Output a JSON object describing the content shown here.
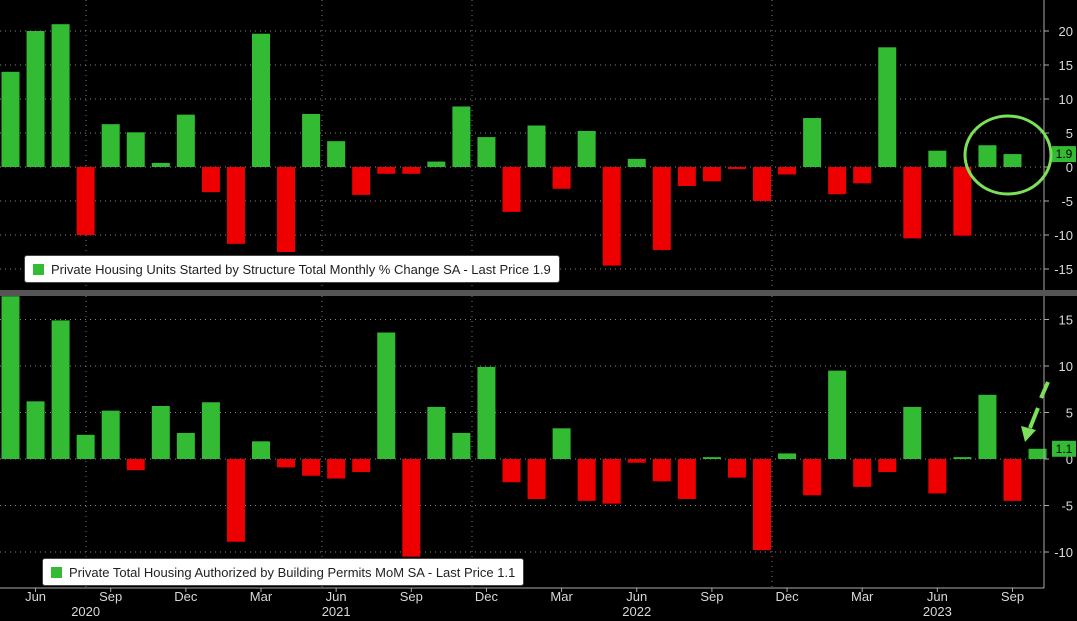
{
  "colors": {
    "positive": "#33bb33",
    "negative": "#ee0000",
    "background": "#000000",
    "annotation": "#7be05a"
  },
  "x_labels": [
    {
      "label": "Jun",
      "index": 1
    },
    {
      "label": "Sep",
      "index": 4
    },
    {
      "label": "Dec",
      "index": 7
    },
    {
      "label": "Mar",
      "index": 10
    },
    {
      "label": "Jun",
      "index": 13
    },
    {
      "label": "Sep",
      "index": 16
    },
    {
      "label": "Dec",
      "index": 19
    },
    {
      "label": "Mar",
      "index": 22
    },
    {
      "label": "Jun",
      "index": 25
    },
    {
      "label": "Sep",
      "index": 28
    },
    {
      "label": "Dec",
      "index": 31
    },
    {
      "label": "Mar",
      "index": 34
    },
    {
      "label": "Jun",
      "index": 37
    },
    {
      "label": "Sep",
      "index": 40
    }
  ],
  "year_labels": [
    {
      "label": "2020",
      "index": 3
    },
    {
      "label": "2021",
      "index": 13
    },
    {
      "label": "2022",
      "index": 25
    },
    {
      "label": "2023",
      "index": 37
    }
  ],
  "chart_data": [
    {
      "type": "bar",
      "legend": "Private Housing Units Started by Structure Total Monthly % Change SA - Last Price 1.9",
      "last_price": "1.9",
      "yticks": [
        20,
        15,
        10,
        5,
        0,
        -5,
        -10,
        -15
      ],
      "ylim": [
        -17,
        24
      ],
      "values": [
        14,
        20,
        21,
        -10,
        6.3,
        5.1,
        0.6,
        7.7,
        -3.7,
        -11.3,
        19.6,
        -12.5,
        7.8,
        3.8,
        -4.1,
        -1,
        -1,
        0.8,
        8.9,
        4.4,
        -6.6,
        6.1,
        -3.2,
        5.3,
        -14.5,
        1.2,
        -12.2,
        -2.8,
        -2.1,
        -0.3,
        -5,
        -1.1,
        7.2,
        -4,
        -2.4,
        17.6,
        -10.5,
        2.4,
        -10.1,
        3.2,
        1.9
      ]
    },
    {
      "type": "bar",
      "legend": "Private Total Housing Authorized by Building Permits MoM SA - Last Price 1.1",
      "last_price": "1.1",
      "yticks": [
        15,
        10,
        5,
        0,
        -5,
        -10
      ],
      "ylim": [
        -13,
        18
      ],
      "values": [
        17.5,
        6.2,
        14.9,
        2.6,
        5.2,
        -1.2,
        5.7,
        2.8,
        6.1,
        -8.9,
        1.9,
        -0.9,
        -1.8,
        -2.1,
        -1.4,
        13.6,
        -10.5,
        5.6,
        2.8,
        9.9,
        -2.5,
        -4.3,
        3.3,
        -4.5,
        -4.8,
        -0.4,
        -2.4,
        -4.3,
        0.2,
        -2,
        -9.8,
        0.6,
        -3.9,
        9.5,
        -3,
        -1.4,
        5.6,
        -3.7,
        0.2,
        6.9,
        -4.5,
        1.1
      ]
    }
  ]
}
